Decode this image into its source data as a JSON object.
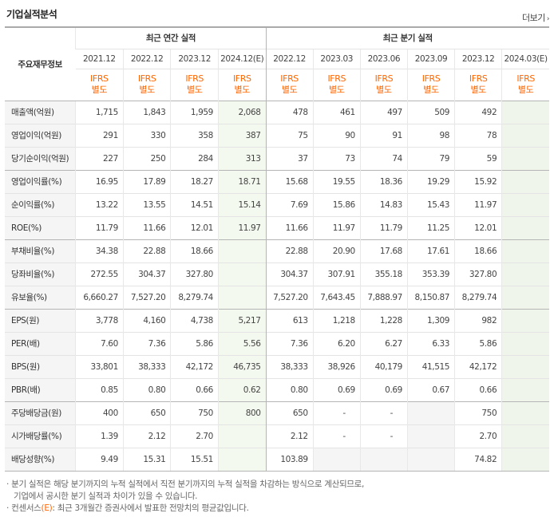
{
  "header": {
    "title": "기업실적분석",
    "more_label": "더보기",
    "more_arrow": "›"
  },
  "table": {
    "corner_label": "주요재무정보",
    "group_annual": "최근 연간 실적",
    "group_quarter": "최근 분기 실적",
    "annual_periods": [
      "2021.12",
      "2022.12",
      "2023.12",
      "2024.12(E)"
    ],
    "quarter_periods": [
      "2022.12",
      "2023.03",
      "2023.06",
      "2023.09",
      "2023.12",
      "2024.03(E)"
    ],
    "ifrs_line1": "IFRS",
    "ifrs_line2": "별도",
    "rows": [
      {
        "label": "매출액(억원)",
        "values": [
          "1,715",
          "1,843",
          "1,959",
          "2,068",
          "478",
          "461",
          "497",
          "509",
          "492",
          ""
        ]
      },
      {
        "label": "영업이익(억원)",
        "values": [
          "291",
          "330",
          "358",
          "387",
          "75",
          "90",
          "91",
          "98",
          "78",
          ""
        ]
      },
      {
        "label": "당기순이익(억원)",
        "values": [
          "227",
          "250",
          "284",
          "313",
          "37",
          "73",
          "74",
          "79",
          "59",
          ""
        ]
      },
      {
        "label": "영업이익률(%)",
        "values": [
          "16.95",
          "17.89",
          "18.27",
          "18.71",
          "15.68",
          "19.55",
          "18.36",
          "19.29",
          "15.92",
          ""
        ]
      },
      {
        "label": "순이익률(%)",
        "values": [
          "13.22",
          "13.55",
          "14.51",
          "15.14",
          "7.69",
          "15.86",
          "14.83",
          "15.43",
          "11.97",
          ""
        ]
      },
      {
        "label": "ROE(%)",
        "values": [
          "11.79",
          "11.66",
          "12.01",
          "11.97",
          "11.66",
          "11.97",
          "11.79",
          "11.25",
          "12.01",
          ""
        ]
      },
      {
        "label": "부채비율(%)",
        "values": [
          "34.38",
          "22.88",
          "18.66",
          "",
          "22.88",
          "20.90",
          "17.68",
          "17.61",
          "18.66",
          ""
        ]
      },
      {
        "label": "당좌비율(%)",
        "values": [
          "272.55",
          "304.37",
          "327.80",
          "",
          "304.37",
          "307.91",
          "355.18",
          "353.39",
          "327.80",
          ""
        ]
      },
      {
        "label": "유보율(%)",
        "values": [
          "6,660.27",
          "7,527.20",
          "8,279.74",
          "",
          "7,527.20",
          "7,643.45",
          "7,888.97",
          "8,150.87",
          "8,279.74",
          ""
        ]
      },
      {
        "label": "EPS(원)",
        "values": [
          "3,778",
          "4,160",
          "4,738",
          "5,217",
          "613",
          "1,218",
          "1,228",
          "1,309",
          "982",
          ""
        ]
      },
      {
        "label": "PER(배)",
        "values": [
          "7.60",
          "7.36",
          "5.86",
          "5.56",
          "7.36",
          "6.20",
          "6.27",
          "6.33",
          "5.86",
          ""
        ]
      },
      {
        "label": "BPS(원)",
        "values": [
          "33,801",
          "38,333",
          "42,172",
          "46,735",
          "38,333",
          "38,926",
          "40,179",
          "41,515",
          "42,172",
          ""
        ]
      },
      {
        "label": "PBR(배)",
        "values": [
          "0.85",
          "0.80",
          "0.66",
          "0.62",
          "0.80",
          "0.69",
          "0.69",
          "0.67",
          "0.66",
          ""
        ]
      },
      {
        "label": "주당배당금(원)",
        "values": [
          "400",
          "650",
          "750",
          "800",
          "650",
          "-",
          "-",
          "",
          "750",
          ""
        ]
      },
      {
        "label": "시가배당률(%)",
        "values": [
          "1.39",
          "2.12",
          "2.70",
          "",
          "2.12",
          "-",
          "-",
          "",
          "2.70",
          ""
        ]
      },
      {
        "label": "배당성향(%)",
        "values": [
          "9.49",
          "15.31",
          "15.51",
          "",
          "103.89",
          "",
          "",
          "",
          "74.82",
          ""
        ]
      }
    ]
  },
  "notes": {
    "line1": "분기 실적은 해당 분기까지의 누적 실적에서 직전 분기까지의 누적 실적을 차감하는 방식으로 계산되므로,",
    "line2": "기업에서 공시한 분기 실적과 차이가 있을 수 있습니다.",
    "line3_prefix": "컨센서스",
    "line3_mark": "(E)",
    "line3_suffix": ": 최근 3개월간 증권사에서 발표한 전망치의 평균값입니다.",
    "bullet": "·"
  },
  "colors": {
    "ifrs_orange": "#ff6600",
    "estimate_bg": "#f4f9ef",
    "label_bg": "#f5f5f5"
  }
}
